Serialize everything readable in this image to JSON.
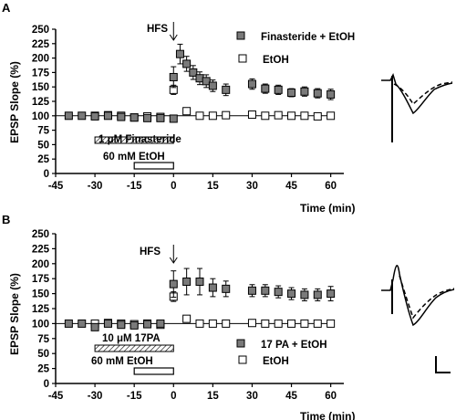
{
  "chart_data": [
    {
      "type": "scatter",
      "panel_label": "A",
      "ylabel": "EPSP Slope (%)",
      "xlabel": "Time (min)",
      "xlim": [
        -45,
        65
      ],
      "ylim": [
        0,
        250
      ],
      "xticks": [
        -45,
        -30,
        -15,
        0,
        15,
        30,
        45,
        60
      ],
      "yticks": [
        0,
        25,
        50,
        75,
        100,
        125,
        150,
        175,
        200,
        225,
        250
      ],
      "grid": false,
      "legend_position": "top-right",
      "hfs_label": "HFS",
      "drug_bar_label": "1 μM Finasteride",
      "drug_bar_range": [
        -30,
        0
      ],
      "etoh_bar_label": "60 mM EtOH",
      "etoh_bar_range": [
        -15,
        0
      ],
      "series": [
        {
          "name": "Finasteride + EtOH",
          "color": "#7a7a7a",
          "x": [
            -40,
            -35,
            -30,
            -25,
            -20,
            -15,
            -10,
            -5,
            0,
            0,
            2.5,
            5,
            7.5,
            10,
            12.5,
            15,
            20,
            30,
            35,
            40,
            45,
            50,
            55,
            60
          ],
          "y": [
            100,
            100,
            99,
            100,
            98,
            97,
            96,
            96,
            95,
            167,
            207,
            190,
            175,
            165,
            160,
            152,
            145,
            155,
            147,
            145,
            140,
            142,
            139,
            137
          ],
          "err": [
            3,
            3,
            3,
            3,
            3,
            3,
            3,
            4,
            6,
            18,
            17,
            13,
            12,
            11,
            11,
            10,
            10,
            9,
            8,
            8,
            7,
            8,
            8,
            9
          ]
        },
        {
          "name": "EtOH",
          "color": "#ffffff",
          "x": [
            -30,
            -25,
            -20,
            -15,
            -10,
            -5,
            0,
            5,
            10,
            15,
            20,
            30,
            35,
            40,
            45,
            50,
            55,
            60
          ],
          "y": [
            100,
            101,
            100,
            97,
            99,
            98,
            145,
            108,
            100,
            100,
            101,
            102,
            100,
            101,
            100,
            100,
            99,
            100
          ],
          "err": [
            3,
            3,
            3,
            3,
            3,
            3,
            8,
            4,
            3,
            3,
            3,
            3,
            3,
            3,
            3,
            3,
            3,
            3
          ]
        }
      ]
    },
    {
      "type": "scatter",
      "panel_label": "B",
      "ylabel": "EPSP Slope (%)",
      "xlabel": "Time (min)",
      "xlim": [
        -45,
        65
      ],
      "ylim": [
        0,
        250
      ],
      "xticks": [
        -45,
        -30,
        -15,
        0,
        15,
        30,
        45,
        60
      ],
      "yticks": [
        0,
        25,
        50,
        75,
        100,
        125,
        150,
        175,
        200,
        225,
        250
      ],
      "grid": false,
      "legend_position": "bottom-right",
      "hfs_label": "HFS",
      "drug_bar_label": "10 μM 17PA",
      "drug_bar_range": [
        -30,
        0
      ],
      "etoh_bar_label": "60 mM EtOH",
      "etoh_bar_range": [
        -15,
        0
      ],
      "series": [
        {
          "name": "17 PA + EtOH",
          "color": "#7a7a7a",
          "x": [
            -40,
            -35,
            -30,
            -25,
            -20,
            -15,
            -10,
            -5,
            0,
            5,
            10,
            15,
            20,
            30,
            35,
            40,
            45,
            50,
            55,
            60
          ],
          "y": [
            100,
            100,
            94,
            100,
            98,
            97,
            99,
            100,
            166,
            170,
            170,
            160,
            158,
            155,
            155,
            153,
            150,
            148,
            148,
            150
          ],
          "err": [
            3,
            3,
            3,
            3,
            3,
            3,
            3,
            4,
            22,
            22,
            22,
            15,
            13,
            10,
            10,
            10,
            10,
            10,
            10,
            12
          ]
        },
        {
          "name": "EtOH",
          "color": "#ffffff",
          "x": [
            -30,
            -25,
            -20,
            -15,
            -10,
            -5,
            0,
            5,
            10,
            15,
            20,
            30,
            35,
            40,
            45,
            50,
            55,
            60
          ],
          "y": [
            100,
            101,
            100,
            99,
            100,
            98,
            145,
            108,
            100,
            100,
            100,
            101,
            100,
            100,
            100,
            100,
            100,
            100
          ],
          "err": [
            3,
            3,
            3,
            3,
            3,
            3,
            8,
            4,
            3,
            3,
            3,
            3,
            3,
            3,
            3,
            3,
            3,
            3
          ]
        }
      ]
    }
  ]
}
